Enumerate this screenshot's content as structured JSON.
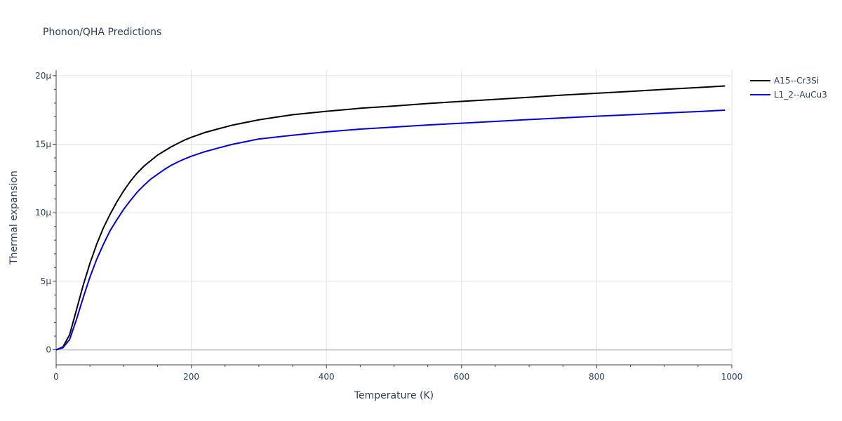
{
  "chart_data": {
    "type": "line",
    "title": "Phonon/QHA Predictions",
    "xlabel": "Temperature (K)",
    "ylabel": "Thermal expansion",
    "xlim": [
      0,
      1000
    ],
    "ylim": [
      -1.1,
      20.4
    ],
    "xticks": [
      0,
      200,
      400,
      600,
      800,
      1000
    ],
    "xtick_labels": [
      "0",
      "200",
      "400",
      "600",
      "800",
      "1000"
    ],
    "yticks": [
      0,
      5,
      10,
      15,
      20
    ],
    "ytick_labels": [
      "0",
      "5μ",
      "10μ",
      "15μ",
      "20μ"
    ],
    "grid": true,
    "legend_position": "top-right",
    "series": [
      {
        "name": "A15--Cr3Si",
        "color": "#000000",
        "x": [
          0,
          10,
          20,
          30,
          40,
          50,
          60,
          70,
          80,
          90,
          100,
          110,
          120,
          130,
          140,
          150,
          160,
          170,
          180,
          190,
          200,
          220,
          240,
          260,
          280,
          300,
          350,
          400,
          450,
          500,
          550,
          600,
          650,
          700,
          750,
          800,
          850,
          900,
          950,
          990
        ],
        "y": [
          0,
          0.2,
          1.1,
          2.9,
          4.7,
          6.3,
          7.7,
          8.9,
          9.9,
          10.8,
          11.6,
          12.3,
          12.9,
          13.4,
          13.8,
          14.2,
          14.5,
          14.8,
          15.05,
          15.3,
          15.5,
          15.85,
          16.12,
          16.38,
          16.58,
          16.78,
          17.15,
          17.4,
          17.62,
          17.78,
          17.97,
          18.12,
          18.27,
          18.42,
          18.58,
          18.72,
          18.85,
          19.0,
          19.13,
          19.25
        ]
      },
      {
        "name": "L1_2--AuCu3",
        "color": "#0000dd",
        "x": [
          0,
          10,
          20,
          30,
          40,
          50,
          60,
          70,
          80,
          90,
          100,
          110,
          120,
          130,
          140,
          150,
          160,
          170,
          180,
          190,
          200,
          220,
          240,
          260,
          280,
          300,
          350,
          400,
          450,
          500,
          550,
          600,
          650,
          700,
          750,
          800,
          850,
          900,
          950,
          990
        ],
        "y": [
          0,
          0.15,
          0.75,
          2.2,
          3.8,
          5.3,
          6.6,
          7.7,
          8.7,
          9.5,
          10.25,
          10.9,
          11.5,
          12.0,
          12.45,
          12.8,
          13.15,
          13.45,
          13.7,
          13.92,
          14.12,
          14.45,
          14.72,
          14.98,
          15.18,
          15.38,
          15.65,
          15.9,
          16.1,
          16.25,
          16.4,
          16.53,
          16.66,
          16.8,
          16.92,
          17.04,
          17.15,
          17.27,
          17.38,
          17.48
        ]
      }
    ]
  }
}
